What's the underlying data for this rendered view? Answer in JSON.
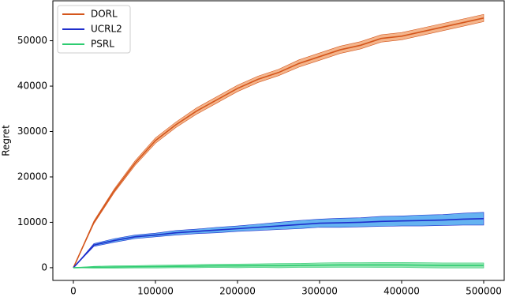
{
  "chart_data": {
    "type": "line",
    "ylabel": "Regret",
    "x": [
      0,
      25000,
      50000,
      75000,
      100000,
      125000,
      150000,
      175000,
      200000,
      225000,
      250000,
      275000,
      300000,
      325000,
      350000,
      375000,
      400000,
      425000,
      450000,
      475000,
      500000
    ],
    "series": [
      {
        "name": "DORL",
        "color": "#d4561c",
        "band_color": "#f2a878",
        "values": [
          0,
          10000,
          17000,
          23000,
          28000,
          31500,
          34500,
          37000,
          39500,
          41500,
          43000,
          45000,
          46500,
          48000,
          49000,
          50500,
          51000,
          52000,
          53000,
          54000,
          55000
        ],
        "lower": [
          0,
          9700,
          16600,
          22500,
          27400,
          30900,
          33800,
          36300,
          38800,
          40800,
          42300,
          44200,
          45700,
          47200,
          48200,
          49700,
          50200,
          51200,
          52200,
          53200,
          54200
        ],
        "upper": [
          0,
          10300,
          17400,
          23500,
          28600,
          32100,
          35200,
          37700,
          40200,
          42200,
          43700,
          45800,
          47300,
          48800,
          49800,
          51300,
          51800,
          52800,
          53800,
          54800,
          55800
        ]
      },
      {
        "name": "UCRL2",
        "color": "#1f2ecc",
        "band_color": "#4aa6ee",
        "values": [
          0,
          5000,
          6000,
          6800,
          7200,
          7700,
          8000,
          8300,
          8600,
          8900,
          9200,
          9500,
          9800,
          9900,
          10000,
          10200,
          10300,
          10400,
          10500,
          10700,
          10800
        ],
        "lower": [
          0,
          4700,
          5600,
          6400,
          6800,
          7200,
          7500,
          7700,
          8000,
          8200,
          8400,
          8600,
          8900,
          8900,
          9000,
          9100,
          9200,
          9200,
          9300,
          9400,
          9400
        ],
        "upper": [
          0,
          5300,
          6400,
          7200,
          7600,
          8200,
          8500,
          8900,
          9200,
          9600,
          10000,
          10400,
          10700,
          10900,
          11000,
          11300,
          11400,
          11600,
          11700,
          12000,
          12200
        ]
      },
      {
        "name": "PSRL",
        "color": "#2ecc71",
        "band_color": "#82e2a6",
        "values": [
          0,
          100,
          150,
          200,
          250,
          300,
          350,
          400,
          400,
          450,
          450,
          500,
          550,
          600,
          600,
          600,
          600,
          550,
          500,
          500,
          500
        ],
        "lower": [
          0,
          -100,
          -100,
          -50,
          -50,
          0,
          0,
          50,
          0,
          50,
          0,
          50,
          50,
          100,
          100,
          50,
          50,
          0,
          -50,
          -50,
          -50
        ],
        "upper": [
          0,
          300,
          400,
          450,
          550,
          600,
          700,
          750,
          800,
          850,
          900,
          950,
          1050,
          1100,
          1100,
          1150,
          1150,
          1100,
          1050,
          1050,
          1050
        ]
      }
    ],
    "xlim": [
      -25000,
      525000
    ],
    "ylim": [
      -2800,
      58800
    ],
    "xticks": [
      0,
      100000,
      200000,
      300000,
      400000,
      500000
    ],
    "yticks": [
      0,
      10000,
      20000,
      30000,
      40000,
      50000
    ],
    "legend": "upper left"
  }
}
